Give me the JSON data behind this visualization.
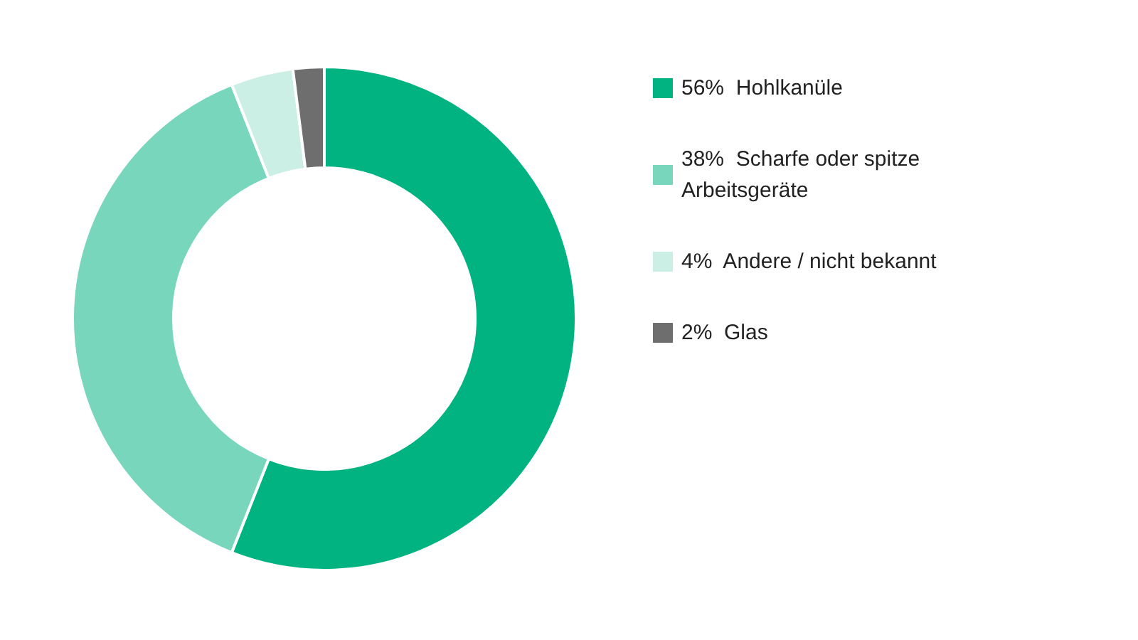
{
  "chart_data": {
    "type": "donut",
    "categories": [
      "Hohlkanüle",
      "Scharfe oder spitze Arbeitsgeräte",
      "Andere / nicht bekannt",
      "Glas"
    ],
    "values": [
      56,
      38,
      4,
      2
    ],
    "value_labels": [
      "56%",
      "38%",
      "4%",
      "2%"
    ],
    "colors": [
      "#00b380",
      "#77d6bb",
      "#ccefe5",
      "#6e6e6e"
    ],
    "legend": "right"
  }
}
